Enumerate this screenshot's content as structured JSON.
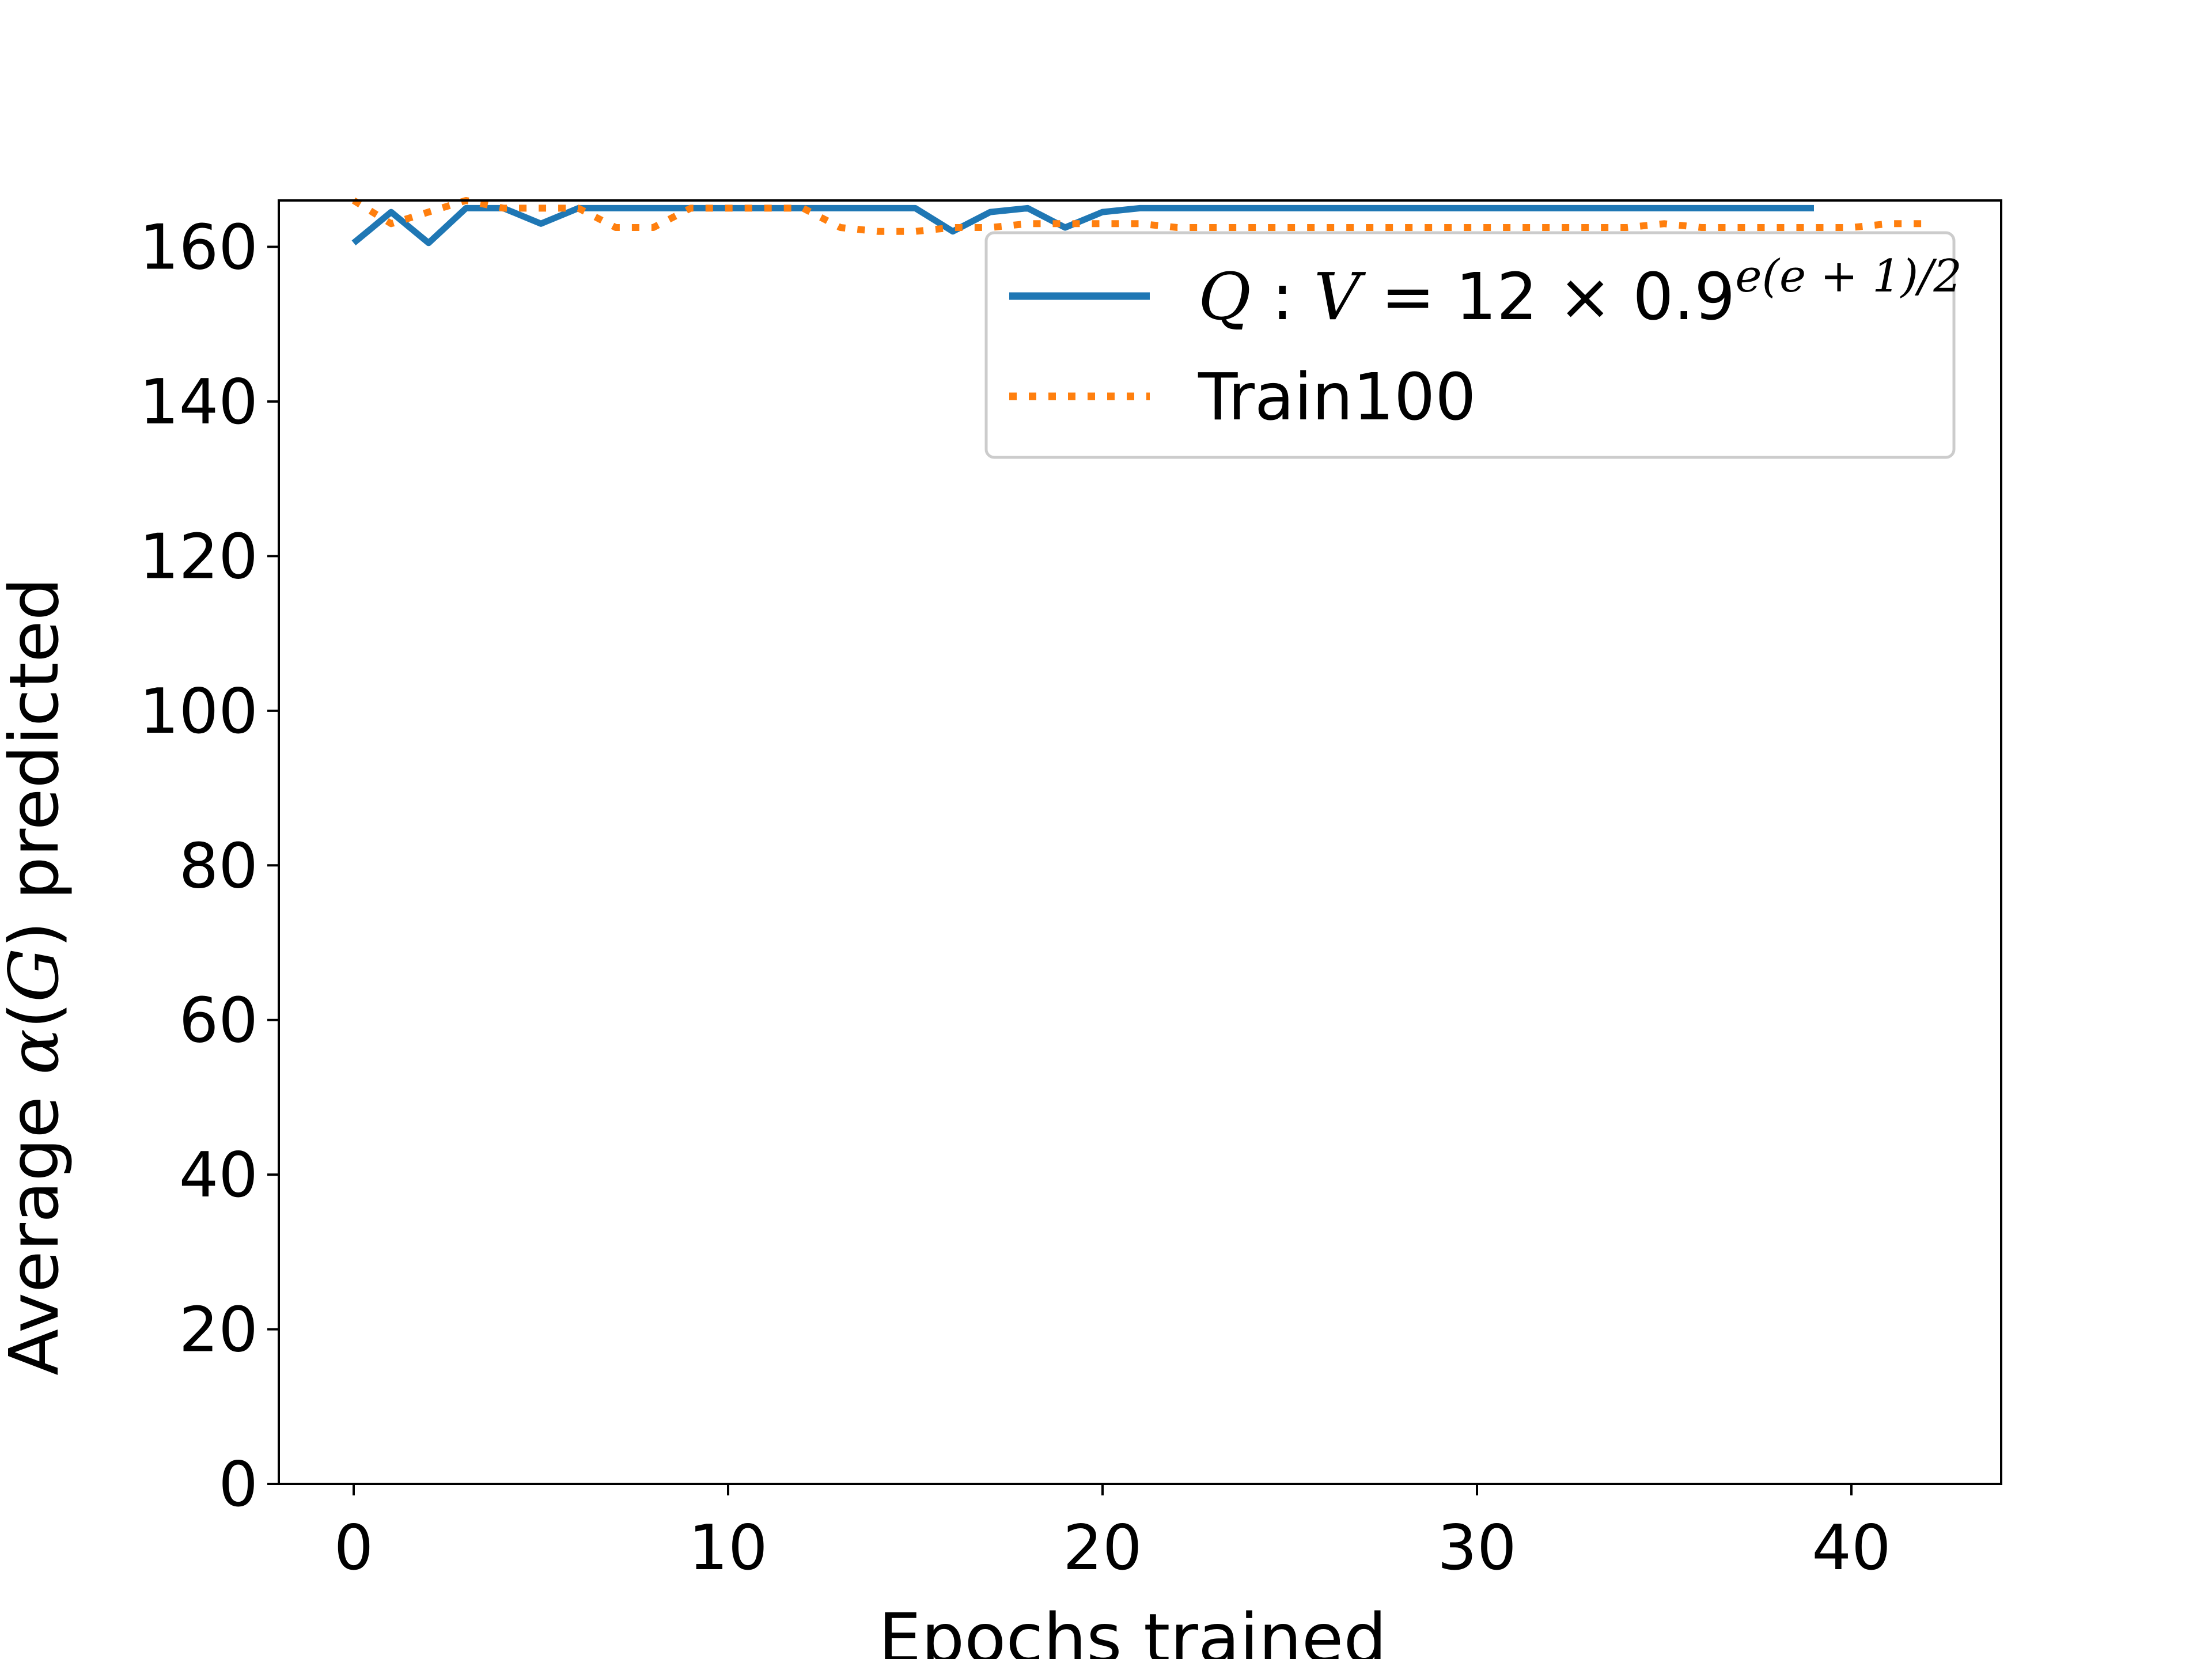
{
  "chart_data": {
    "type": "line",
    "title": "",
    "xlabel": "Epochs trained",
    "ylabel_parts": [
      "Average ",
      "α",
      "(",
      "G",
      ") predicted"
    ],
    "xlim": [
      -2,
      44
    ],
    "ylim": [
      0,
      166
    ],
    "xticks": [
      0,
      10,
      20,
      30,
      40
    ],
    "yticks": [
      0,
      20,
      40,
      60,
      80,
      100,
      120,
      140,
      160
    ],
    "legend_position": "upper-right",
    "grid": false,
    "series": [
      {
        "name_parts": [
          "Q",
          " : ",
          "V",
          " = 12 × 0.9",
          "e(e + 1)/2"
        ],
        "color": "#1f77b4",
        "style": "solid",
        "x": [
          0,
          1,
          2,
          3,
          4,
          5,
          6,
          7,
          8,
          9,
          10,
          11,
          12,
          13,
          14,
          15,
          16,
          17,
          18,
          19,
          20,
          21,
          22,
          23,
          24,
          25,
          26,
          27,
          28,
          29,
          30,
          31,
          32,
          33,
          34,
          35,
          36,
          37,
          38,
          39
        ],
        "y": [
          160.5,
          164.5,
          160.5,
          165,
          165,
          163,
          165,
          165,
          165,
          165,
          165,
          165,
          165,
          165,
          165,
          165,
          162,
          164.5,
          165,
          162.5,
          164.5,
          165,
          165,
          165,
          165,
          165,
          165,
          165,
          165,
          165,
          165,
          165,
          165,
          165,
          165,
          165,
          165,
          165,
          165,
          165
        ]
      },
      {
        "name": "Train100",
        "color": "#ff7f0e",
        "style": "dotted",
        "x": [
          0,
          1,
          2,
          3,
          4,
          5,
          6,
          7,
          8,
          9,
          10,
          11,
          12,
          13,
          14,
          15,
          16,
          17,
          18,
          19,
          20,
          21,
          22,
          23,
          24,
          25,
          26,
          27,
          28,
          29,
          30,
          31,
          32,
          33,
          34,
          35,
          36,
          37,
          38,
          39,
          40,
          41,
          42
        ],
        "y": [
          166,
          163,
          164.5,
          166,
          165,
          165,
          165,
          162.5,
          162.5,
          165,
          165,
          165,
          165,
          162.5,
          162,
          162,
          162.5,
          162.5,
          163,
          163,
          163,
          163,
          162.5,
          162.5,
          162.5,
          162.5,
          162.5,
          162.5,
          162.5,
          162.5,
          162.5,
          162.5,
          162.5,
          162.5,
          162.5,
          163,
          162.5,
          162.5,
          162.5,
          162.5,
          162.5,
          163,
          163
        ]
      }
    ]
  }
}
